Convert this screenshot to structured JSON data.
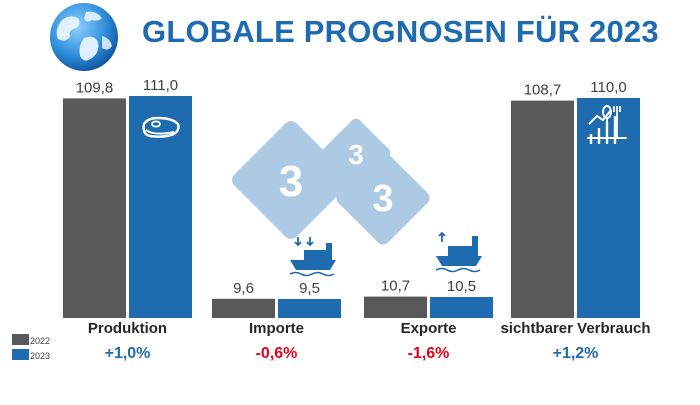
{
  "title": "GLOBALE PROGNOSEN FÜR 2023",
  "colors": {
    "title": "#1f6bb0",
    "series_2022": "#58595b",
    "series_2023": "#1f6bb0",
    "positive": "#1f6bb0",
    "negative": "#e8001c",
    "watermark": "#9ec0de"
  },
  "watermark_logo": [
    "3",
    "3",
    "3"
  ],
  "icons": {
    "globe": "globe-icon",
    "produktion": "steak-icon",
    "importe": "cargo-ship-import-icon",
    "exporte": "cargo-ship-export-icon",
    "verbrauch": "consumption-icon"
  },
  "chart_data": {
    "type": "bar",
    "title": "GLOBALE PROGNOSEN FÜR 2023",
    "categories": [
      "Produktion",
      "Importe",
      "Exporte",
      "sichtbarer Verbrauch"
    ],
    "series": [
      {
        "name": "2022",
        "values": [
          109.8,
          9.6,
          10.7,
          108.7
        ],
        "labels": [
          "109,8",
          "9,6",
          "10,7",
          "108,7"
        ]
      },
      {
        "name": "2023",
        "values": [
          111.0,
          9.5,
          10.5,
          110.0
        ],
        "labels": [
          "111,0",
          "9,5",
          "10,5",
          "110,0"
        ]
      }
    ],
    "changes": [
      "+1,0%",
      "-0,6%",
      "-1,6%",
      "+1,2%"
    ],
    "change_signs": [
      "positive",
      "negative",
      "negative",
      "positive"
    ],
    "ylim": [
      0,
      111
    ],
    "grid": false,
    "legend_position": "bottom-left",
    "xlabel": "",
    "ylabel": ""
  }
}
